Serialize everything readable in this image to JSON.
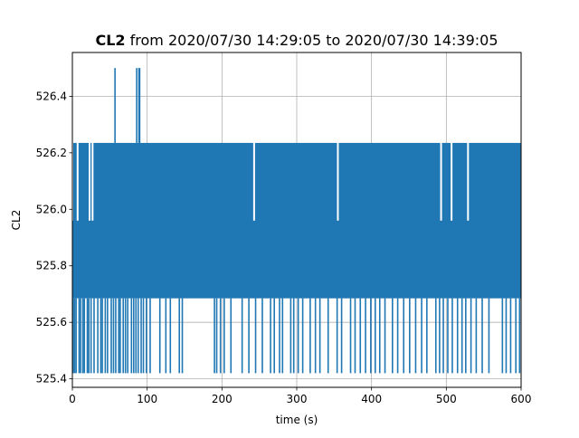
{
  "chart_data": {
    "type": "line",
    "title_bold": "CL2",
    "title_rest": " from 2020/07/30 14:29:05 to 2020/07/30 14:39:05",
    "xlabel": "time (s)",
    "ylabel": "CL2",
    "xlim": [
      0,
      600
    ],
    "ylim": [
      525.37,
      526.555
    ],
    "xticks": [
      0,
      100,
      200,
      300,
      400,
      500,
      600
    ],
    "yticks": [
      525.4,
      525.6,
      525.8,
      526.0,
      526.2,
      526.4
    ],
    "ytick_labels": [
      "525.4",
      "525.6",
      "525.8",
      "526.0",
      "526.2",
      "526.4"
    ],
    "grid": true,
    "color": "#1f77b4",
    "band": {
      "low": 525.685,
      "high": 526.235
    },
    "ceiling_dips": [
      {
        "x": 0,
        "to": 525.96
      },
      {
        "x": 7,
        "to": 525.96
      },
      {
        "x": 23,
        "to": 525.96
      },
      {
        "x": 27,
        "to": 525.96
      },
      {
        "x": 243,
        "to": 525.96
      },
      {
        "x": 355,
        "to": 525.96
      },
      {
        "x": 493,
        "to": 525.96
      },
      {
        "x": 507,
        "to": 525.96
      },
      {
        "x": 529,
        "to": 525.96
      }
    ],
    "spikes_high": [
      57,
      86,
      89,
      90
    ],
    "spike_high_value": 526.5,
    "low_spike_value": 525.42,
    "spikes_low": [
      1,
      3,
      5,
      9,
      11,
      14,
      16,
      20,
      22,
      25,
      29,
      34,
      38,
      40,
      44,
      47,
      52,
      55,
      58,
      62,
      64,
      68,
      71,
      74,
      79,
      82,
      85,
      88,
      92,
      95,
      99,
      104,
      117,
      125,
      131,
      143,
      147,
      190,
      193,
      198,
      203,
      212,
      227,
      236,
      245,
      254,
      265,
      270,
      277,
      281,
      292,
      296,
      302,
      308,
      318,
      325,
      331,
      342,
      354,
      360,
      372,
      378,
      385,
      392,
      399,
      405,
      411,
      418,
      428,
      435,
      443,
      451,
      459,
      467,
      474,
      486,
      491,
      496,
      502,
      508,
      515,
      521,
      526,
      533,
      540,
      548,
      557,
      575,
      580,
      586,
      593,
      598
    ]
  }
}
